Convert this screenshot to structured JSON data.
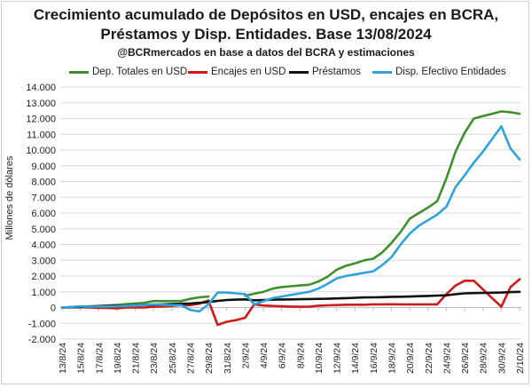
{
  "chart_data": {
    "type": "line",
    "title": "Crecimiento acumulado de Depósitos en USD, encajes en BCRA,",
    "title_line2": "Préstamos y Disp. Entidades. Base 13/08/2024",
    "subtitle": "@BCRmercados  en base a datos del BCRA y estimaciones",
    "ylabel": "Millones de dólares",
    "xlabel": "",
    "ylim": [
      -2000,
      14000
    ],
    "y_ticks": [
      -2000,
      -1000,
      0,
      1000,
      2000,
      3000,
      4000,
      5000,
      6000,
      7000,
      8000,
      9000,
      10000,
      11000,
      12000,
      13000,
      14000
    ],
    "y_tick_labels": [
      "-2.000",
      "-1.000",
      "0",
      "1.000",
      "2.000",
      "3.000",
      "4.000",
      "5.000",
      "6.000",
      "7.000",
      "8.000",
      "9.000",
      "10.000",
      "11.000",
      "12.000",
      "13.000",
      "14.000"
    ],
    "x": [
      "13/8/24",
      "14/8/24",
      "15/8/24",
      "16/8/24",
      "17/8/24",
      "18/8/24",
      "19/8/24",
      "20/8/24",
      "21/8/24",
      "22/8/24",
      "23/8/24",
      "24/8/24",
      "25/8/24",
      "26/8/24",
      "27/8/24",
      "28/8/24",
      "29/8/24",
      "30/8/24",
      "31/8/24",
      "1/9/24",
      "2/9/24",
      "3/9/24",
      "4/9/24",
      "5/9/24",
      "6/9/24",
      "7/9/24",
      "8/9/24",
      "9/9/24",
      "10/9/24",
      "11/9/24",
      "12/9/24",
      "13/9/24",
      "14/9/24",
      "15/9/24",
      "16/9/24",
      "17/9/24",
      "18/9/24",
      "19/9/24",
      "20/9/24",
      "21/9/24",
      "22/9/24",
      "23/9/24",
      "24/9/24",
      "25/9/24",
      "26/9/24",
      "27/9/24",
      "28/9/24",
      "29/9/24",
      "30/9/24",
      "1/10/24",
      "2/10/24"
    ],
    "x_tick_labels": [
      "13/8/24",
      "15/8/24",
      "17/8/24",
      "19/8/24",
      "21/8/24",
      "23/8/24",
      "25/8/24",
      "27/8/24",
      "29/8/24",
      "31/8/24",
      "2/9/24",
      "4/9/24",
      "6/9/24",
      "8/9/24",
      "10/9/24",
      "12/9/24",
      "14/9/24",
      "16/9/24",
      "18/9/24",
      "20/9/24",
      "22/9/24",
      "24/9/24",
      "26/9/24",
      "28/9/24",
      "30/9/24",
      "2/10/24"
    ],
    "grid": true,
    "legend_position": "top",
    "series": [
      {
        "name": "Dep. Totales en USD",
        "color": "#3f8f2f",
        "values": [
          0,
          30,
          60,
          80,
          100,
          130,
          170,
          220,
          260,
          300,
          410,
          410,
          410,
          410,
          550,
          650,
          700,
          null,
          null,
          null,
          750,
          880,
          1000,
          1200,
          1300,
          1350,
          1400,
          1450,
          1650,
          1950,
          2400,
          2650,
          2800,
          3000,
          3100,
          3500,
          4100,
          4800,
          5650,
          6000,
          6350,
          6750,
          8200,
          9900,
          11100,
          12000,
          12150,
          12300,
          12450,
          12400,
          12300
        ]
      },
      {
        "name": "Encajes en USD",
        "color": "#d01a1a",
        "values": [
          0,
          10,
          20,
          0,
          -20,
          -30,
          -50,
          0,
          0,
          0,
          50,
          70,
          100,
          150,
          150,
          250,
          450,
          -1100,
          -900,
          -800,
          -650,
          200,
          130,
          100,
          80,
          60,
          50,
          50,
          120,
          140,
          160,
          180,
          180,
          180,
          200,
          200,
          210,
          200,
          200,
          200,
          200,
          200,
          850,
          1400,
          1700,
          1700,
          1150,
          600,
          50,
          1300,
          1800
        ]
      },
      {
        "name": "Préstamos",
        "color": "#111111",
        "values": [
          0,
          20,
          40,
          60,
          80,
          100,
          110,
          120,
          140,
          160,
          180,
          200,
          220,
          240,
          260,
          300,
          350,
          420,
          480,
          500,
          520,
          460,
          480,
          500,
          510,
          520,
          530,
          540,
          550,
          560,
          580,
          600,
          620,
          640,
          650,
          660,
          680,
          690,
          700,
          720,
          740,
          760,
          780,
          850,
          900,
          920,
          930,
          940,
          950,
          980,
          1000
        ]
      },
      {
        "name": "Disp. Efectivo Entidades",
        "color": "#2ea3dc",
        "values": [
          0,
          40,
          80,
          50,
          60,
          70,
          80,
          100,
          130,
          160,
          200,
          180,
          150,
          150,
          -150,
          -250,
          200,
          950,
          950,
          900,
          850,
          200,
          400,
          600,
          700,
          800,
          900,
          1000,
          1200,
          1500,
          1850,
          2000,
          2100,
          2200,
          2300,
          2700,
          3200,
          4000,
          4700,
          5200,
          5550,
          5900,
          6400,
          7650,
          8400,
          9200,
          9900,
          10700,
          11500,
          10100,
          9400
        ]
      }
    ]
  }
}
